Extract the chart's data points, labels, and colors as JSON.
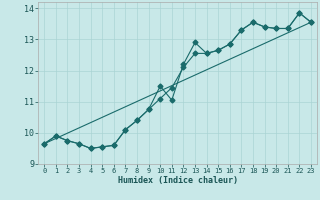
{
  "xlabel": "Humidex (Indice chaleur)",
  "xlim": [
    -0.5,
    23.5
  ],
  "ylim": [
    9,
    14.2
  ],
  "bg_color": "#c8e8e8",
  "line_color": "#1a6b6b",
  "grid_color": "#aad4d4",
  "line1_x": [
    0,
    1,
    2,
    3,
    4,
    5,
    6,
    7,
    8,
    9,
    10,
    11,
    12,
    13,
    14,
    15,
    16,
    17,
    18,
    19,
    20,
    21,
    22,
    23
  ],
  "line1_y": [
    9.65,
    9.9,
    9.75,
    9.65,
    9.5,
    9.55,
    9.6,
    10.1,
    10.4,
    10.75,
    11.5,
    11.05,
    12.2,
    12.9,
    12.55,
    12.65,
    12.85,
    13.3,
    13.55,
    13.4,
    13.35,
    13.35,
    13.85,
    13.55
  ],
  "line2_x": [
    0,
    1,
    2,
    3,
    4,
    5,
    6,
    7,
    8,
    9,
    10,
    11,
    12,
    13,
    14,
    15,
    16,
    17,
    18,
    19,
    20,
    21,
    22,
    23
  ],
  "line2_y": [
    9.65,
    9.9,
    9.75,
    9.65,
    9.5,
    9.55,
    9.6,
    10.1,
    10.4,
    10.75,
    11.1,
    11.45,
    12.1,
    12.55,
    12.55,
    12.65,
    12.85,
    13.3,
    13.55,
    13.4,
    13.35,
    13.35,
    13.85,
    13.55
  ],
  "line3_x": [
    0,
    23
  ],
  "line3_y": [
    9.65,
    13.55
  ],
  "yticks": [
    9,
    10,
    11,
    12,
    13,
    14
  ],
  "xticks": [
    0,
    1,
    2,
    3,
    4,
    5,
    6,
    7,
    8,
    9,
    10,
    11,
    12,
    13,
    14,
    15,
    16,
    17,
    18,
    19,
    20,
    21,
    22,
    23
  ]
}
